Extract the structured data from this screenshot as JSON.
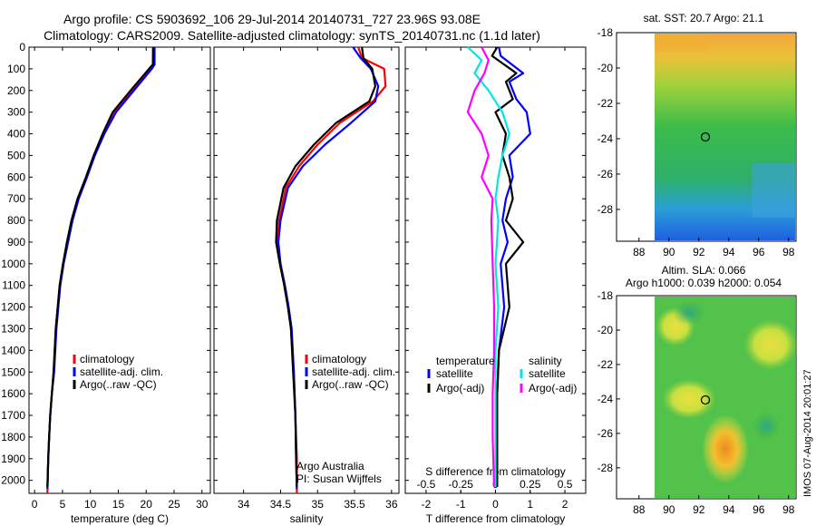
{
  "header": {
    "line1": "Argo profile: CS 5903692_106 29-Jul-2014 20140731_727 23.96S 93.08E",
    "line2": "Climatology: CARS2009. Satellite-adjusted climatology: synTS_20140731.nc (1.1d later)"
  },
  "colors": {
    "climatology": "#ff0000",
    "satellite": "#0000ff",
    "argo": "#000000",
    "sal_satellite": "#00e5e5",
    "sal_argo": "#ff00ff",
    "map_marker": "#000000"
  },
  "side_text": {
    "vertical_stamp": "IMOS 07-Aug-2014 20:01:27",
    "institution": "Argo Australia",
    "pi": "PI: Susan Wijffels"
  },
  "chart_data": [
    {
      "type": "line",
      "name": "temperature profile",
      "xlabel": "temperature (deg C)",
      "ylabel": "",
      "xlim": [
        -1,
        31.5
      ],
      "ylim": [
        2060,
        0
      ],
      "xticks": [
        0,
        5,
        10,
        15,
        20,
        25,
        30
      ],
      "yticks": [
        0,
        100,
        200,
        300,
        400,
        500,
        600,
        700,
        800,
        900,
        1000,
        1100,
        1200,
        1300,
        1400,
        1500,
        1600,
        1700,
        1800,
        1900,
        2000
      ],
      "legend": [
        "climatology",
        "satellite-adj. clim.",
        "Argo(..raw -QC)"
      ],
      "legend_position": "lower-middle",
      "series": [
        {
          "name": "climatology",
          "color_key": "climatology",
          "x": [
            21.2,
            21.2,
            20.7,
            17.5,
            14.2,
            12.3,
            10.7,
            9.3,
            7.8,
            6.7,
            5.9,
            5.1,
            4.5,
            3.8,
            3.4,
            3.1,
            2.8,
            2.6,
            2.45,
            2.3
          ],
          "y": [
            0,
            80,
            100,
            200,
            300,
            400,
            500,
            600,
            700,
            800,
            900,
            1000,
            1100,
            1300,
            1500,
            1600,
            1700,
            1800,
            1900,
            2060
          ]
        },
        {
          "name": "satellite-adj. clim.",
          "color_key": "satellite",
          "x": [
            21.5,
            21.5,
            21.0,
            17.8,
            14.6,
            12.5,
            10.8,
            9.4,
            7.9,
            6.8,
            6.0,
            5.2,
            4.6,
            3.9,
            3.5,
            3.1,
            2.8,
            2.6,
            2.45,
            2.3
          ],
          "y": [
            0,
            80,
            100,
            200,
            300,
            400,
            500,
            600,
            700,
            800,
            900,
            1000,
            1100,
            1300,
            1500,
            1600,
            1700,
            1800,
            1900,
            2040
          ]
        },
        {
          "name": "Argo(..raw -QC)",
          "color_key": "argo",
          "x": [
            21.3,
            21.2,
            20.5,
            17.2,
            14.0,
            12.2,
            10.6,
            9.2,
            7.7,
            6.6,
            5.8,
            5.1,
            4.5,
            3.8,
            3.4,
            3.1,
            2.8,
            2.6,
            2.45,
            2.3
          ],
          "y": [
            0,
            80,
            100,
            200,
            300,
            400,
            500,
            600,
            700,
            800,
            900,
            1000,
            1100,
            1300,
            1500,
            1600,
            1700,
            1800,
            1900,
            2030
          ]
        }
      ]
    },
    {
      "type": "line",
      "name": "salinity profile",
      "xlabel": "salinity",
      "ylabel": "",
      "xlim": [
        33.6,
        36.1
      ],
      "ylim": [
        2060,
        0
      ],
      "xticks": [
        34,
        34.5,
        35,
        35.5,
        36
      ],
      "legend": [
        "climatology",
        "satellite-adj. clim.",
        "Argo(..raw -QC)"
      ],
      "legend_position": "lower-right",
      "series": [
        {
          "name": "climatology",
          "color_key": "climatology",
          "x": [
            35.55,
            35.6,
            35.9,
            35.92,
            35.75,
            35.3,
            35.0,
            34.75,
            34.57,
            34.48,
            34.46,
            34.5,
            34.55,
            34.6,
            34.64,
            34.68,
            34.7,
            34.72,
            34.72
          ],
          "y": [
            0,
            50,
            100,
            180,
            250,
            350,
            450,
            550,
            650,
            800,
            900,
            1000,
            1100,
            1200,
            1300,
            1500,
            1700,
            1900,
            2060
          ]
        },
        {
          "name": "satellite-adj. clim.",
          "color_key": "satellite",
          "x": [
            35.48,
            35.58,
            35.72,
            35.82,
            35.78,
            35.45,
            35.1,
            34.8,
            34.6,
            34.5,
            34.47,
            34.5,
            34.56,
            34.61,
            34.65,
            34.68,
            34.7,
            34.71,
            34.72
          ],
          "y": [
            0,
            50,
            100,
            180,
            250,
            350,
            450,
            550,
            650,
            800,
            900,
            1000,
            1100,
            1200,
            1300,
            1500,
            1700,
            1900,
            2040
          ]
        },
        {
          "name": "Argo(..raw -QC)",
          "color_key": "argo",
          "x": [
            35.6,
            35.62,
            35.74,
            35.78,
            35.7,
            35.25,
            34.95,
            34.7,
            34.54,
            34.45,
            34.44,
            34.49,
            34.55,
            34.6,
            34.64,
            34.67,
            34.7,
            34.71,
            34.72
          ],
          "y": [
            0,
            50,
            100,
            180,
            250,
            350,
            450,
            550,
            650,
            800,
            900,
            1000,
            1100,
            1200,
            1300,
            1500,
            1700,
            1900,
            2030
          ]
        }
      ]
    },
    {
      "type": "line",
      "name": "difference from climatology",
      "xlabel": "T difference from climatology",
      "x2label": "S difference from climatology",
      "xlim": [
        -2.6,
        2.6
      ],
      "x2lim": [
        -0.65,
        0.65
      ],
      "ylim": [
        2060,
        0
      ],
      "xticks": [
        -2,
        -1,
        0,
        1,
        2
      ],
      "x2ticks": [
        -0.5,
        -0.25,
        0,
        0.25,
        0.5
      ],
      "x2ticklabels": [
        "-0.5",
        "-0.25",
        "0",
        "0.25",
        "0.5"
      ],
      "legend_groups": [
        {
          "title": "temperature",
          "items": [
            "satellite",
            "Argo(-adj)"
          ]
        },
        {
          "title": "salinity",
          "items": [
            "satellite",
            "Argo(-adj)"
          ]
        }
      ],
      "series": [
        {
          "name": "temperature satellite",
          "color_key": "satellite",
          "x": [
            0.1,
            0.15,
            0.8,
            0.4,
            0.6,
            0.9,
            1.0,
            0.4,
            0.5,
            0.3,
            0.2,
            0.35,
            0.15,
            0.25,
            0.1,
            0.05,
            0.05,
            0.05,
            0.05
          ],
          "y": [
            0,
            40,
            120,
            160,
            240,
            300,
            400,
            500,
            600,
            700,
            800,
            900,
            1000,
            1200,
            1400,
            1600,
            1800,
            1900,
            2030
          ]
        },
        {
          "name": "temperature Argo(-adj)",
          "color_key": "argo",
          "x": [
            0.05,
            -0.1,
            0.6,
            0.3,
            0.5,
            0.0,
            0.3,
            0.2,
            0.4,
            0.5,
            0.3,
            0.8,
            0.3,
            0.4,
            0.1,
            0.05,
            0.05,
            0.05,
            0.05
          ],
          "y": [
            0,
            40,
            120,
            160,
            240,
            300,
            400,
            500,
            600,
            700,
            800,
            900,
            1000,
            1200,
            1400,
            1600,
            1800,
            1900,
            2030
          ]
        },
        {
          "name": "salinity satellite",
          "color_key": "sal_satellite",
          "x2": [
            -0.2,
            -0.1,
            -0.15,
            -0.05,
            0.05,
            0.1,
            0.05,
            0.02,
            0.0,
            0.02,
            0.0,
            0.02,
            0.0,
            0.0,
            0.0,
            0.0
          ],
          "y": [
            0,
            60,
            120,
            200,
            300,
            400,
            500,
            600,
            700,
            800,
            1000,
            1200,
            1400,
            1600,
            1800,
            2030
          ]
        },
        {
          "name": "salinity Argo(-adj)",
          "color_key": "sal_argo",
          "x2": [
            -0.1,
            -0.05,
            -0.08,
            -0.15,
            -0.2,
            -0.1,
            -0.05,
            -0.1,
            -0.02,
            -0.03,
            -0.02,
            -0.01,
            -0.01,
            -0.02,
            -0.02,
            -0.01
          ],
          "y": [
            0,
            60,
            120,
            200,
            300,
            400,
            500,
            600,
            700,
            800,
            1000,
            1200,
            1400,
            1600,
            1800,
            2030
          ]
        }
      ]
    },
    {
      "type": "heatmap",
      "name": "satellite SST map",
      "title": "sat. SST: 20.7  Argo: 21.1",
      "xlim": [
        86.5,
        98.5
      ],
      "ylim": [
        -29.8,
        -18
      ],
      "xticks": [
        88,
        90,
        92,
        94,
        96,
        98
      ],
      "yticks": [
        -18,
        -20,
        -22,
        -24,
        -26,
        -28
      ],
      "data_region_x": [
        90,
        98.5
      ],
      "marker": {
        "lon": 93.08,
        "lat": -23.96
      },
      "color_pattern": "orange/yellow in north grading through green to blue in south"
    },
    {
      "type": "heatmap",
      "name": "altimetry SLA map",
      "title_lines": [
        "Altim. SLA: 0.066",
        "Argo h1000: 0.039 h2000: 0.054"
      ],
      "xlim": [
        86.5,
        98.5
      ],
      "ylim": [
        -29.8,
        -18
      ],
      "xticks": [
        88,
        90,
        92,
        94,
        96,
        98
      ],
      "yticks": [
        -18,
        -20,
        -22,
        -24,
        -26,
        -28
      ],
      "data_region_x": [
        90,
        98.5
      ],
      "marker": {
        "lon": 93.08,
        "lat": -23.96
      },
      "color_pattern": "green field with yellow/orange patches"
    }
  ]
}
